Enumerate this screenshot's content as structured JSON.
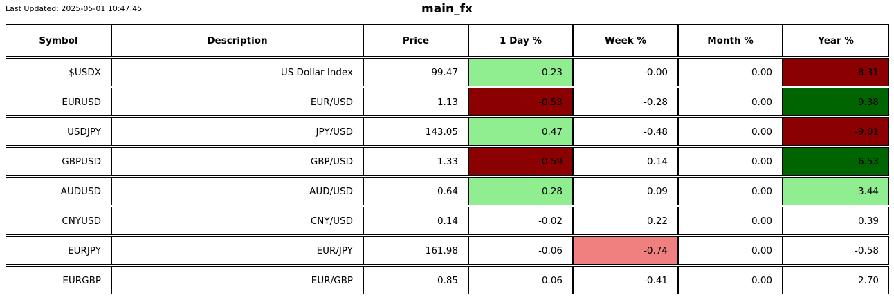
{
  "meta": {
    "last_updated": "Last Updated: 2025-05-01 10:47:45",
    "title": "main_fx"
  },
  "colors": {
    "strong_gain_bg": "#006400",
    "gain_bg": "#90EE90",
    "loss_bg": "#F08080",
    "strong_loss_bg": "#8B0000",
    "text": "#000000",
    "border": "#000000"
  },
  "chart_data": {
    "type": "table",
    "title": "main_fx",
    "columns": [
      "Symbol",
      "Description",
      "Price",
      "1 Day %",
      "Week %",
      "Month %",
      "Year %"
    ],
    "column_keys": [
      "symbol",
      "description",
      "price",
      "day-pct",
      "week-pct",
      "month-pct",
      "year-pct"
    ],
    "rows": [
      {
        "cells": [
          "$USDX",
          "US Dollar Index",
          "99.47",
          "0.23",
          "-0.00",
          "0.00",
          "-8.31"
        ],
        "bg": [
          "",
          "",
          "",
          "#90EE90",
          "",
          "",
          "#8B0000"
        ]
      },
      {
        "cells": [
          "EURUSD",
          "EUR/USD",
          "1.13",
          "-0.53",
          "-0.28",
          "0.00",
          "9.38"
        ],
        "bg": [
          "",
          "",
          "",
          "#8B0000",
          "",
          "",
          "#006400"
        ]
      },
      {
        "cells": [
          "USDJPY",
          "JPY/USD",
          "143.05",
          "0.47",
          "-0.48",
          "0.00",
          "-9.01"
        ],
        "bg": [
          "",
          "",
          "",
          "#90EE90",
          "",
          "",
          "#8B0000"
        ]
      },
      {
        "cells": [
          "GBPUSD",
          "GBP/USD",
          "1.33",
          "-0.59",
          "0.14",
          "0.00",
          "6.53"
        ],
        "bg": [
          "",
          "",
          "",
          "#8B0000",
          "",
          "",
          "#006400"
        ]
      },
      {
        "cells": [
          "AUDUSD",
          "AUD/USD",
          "0.64",
          "0.28",
          "0.09",
          "0.00",
          "3.44"
        ],
        "bg": [
          "",
          "",
          "",
          "#90EE90",
          "",
          "",
          "#90EE90"
        ]
      },
      {
        "cells": [
          "CNYUSD",
          "CNY/USD",
          "0.14",
          "-0.02",
          "0.22",
          "0.00",
          "0.39"
        ],
        "bg": [
          "",
          "",
          "",
          "",
          "",
          "",
          ""
        ]
      },
      {
        "cells": [
          "EURJPY",
          "EUR/JPY",
          "161.98",
          "-0.06",
          "-0.74",
          "0.00",
          "-0.58"
        ],
        "bg": [
          "",
          "",
          "",
          "",
          "#F08080",
          "",
          ""
        ]
      },
      {
        "cells": [
          "EURGBP",
          "EUR/GBP",
          "0.85",
          "0.06",
          "-0.41",
          "0.00",
          "2.70"
        ],
        "bg": [
          "",
          "",
          "",
          "",
          "",
          "",
          ""
        ]
      }
    ]
  }
}
